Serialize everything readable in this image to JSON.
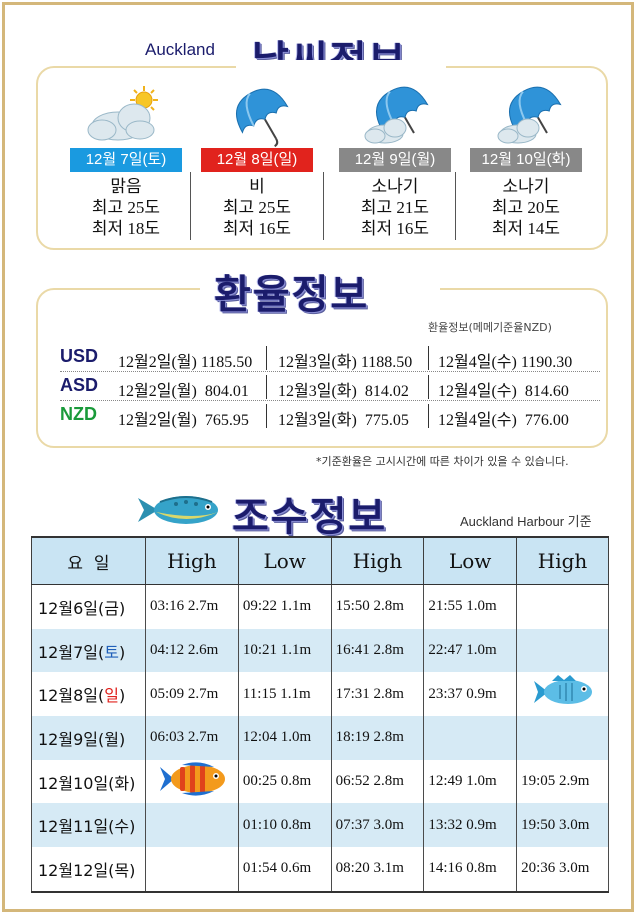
{
  "weather": {
    "location": "Auckland",
    "title": "날씨정보",
    "days": [
      {
        "date": "12월 7일(토)",
        "badge_color": "#1a9ae0",
        "icon": "sun-cloud-icon",
        "condition": "맑음",
        "high": "최고 25도",
        "low": "최저 18도"
      },
      {
        "date": "12월 8일(일)",
        "badge_color": "#e1231d",
        "icon": "umbrella-icon",
        "condition": "비",
        "high": "최고 25도",
        "low": "최저 16도"
      },
      {
        "date": "12월 9일(월)",
        "badge_color": "#888888",
        "icon": "umbrella-cloud-icon",
        "condition": "소나기",
        "high": "최고 21도",
        "low": "최저 16도"
      },
      {
        "date": "12월 10일(화)",
        "badge_color": "#888888",
        "icon": "umbrella-cloud-icon",
        "condition": "소나기",
        "high": "최고 20도",
        "low": "최저 14도"
      }
    ]
  },
  "exchange": {
    "title": "환율정보",
    "note": "환율정보(메메기준율NZD)",
    "footnote": "*기준환율은 고시시간에 따른 차이가 있을 수 있습니다.",
    "rows": [
      {
        "currency": "USD",
        "color": "#1b1c6c",
        "values": [
          "12월2일(월) 1185.50",
          "12월3일(화) 1188.50",
          "12월4일(수) 1190.30"
        ]
      },
      {
        "currency": "ASD",
        "color": "#1b1c6c",
        "values": [
          "12월2일(월)  804.01",
          "12월3일(화)  814.02",
          "12월4일(수)  814.60"
        ]
      },
      {
        "currency": "NZD",
        "color": "#1a9a3a",
        "values": [
          "12월2일(월)  765.95",
          "12월3일(화)  775.05",
          "12월4일(수)  776.00"
        ]
      }
    ]
  },
  "tide": {
    "title": "조수정보",
    "reference": "Auckland Harbour 기준",
    "headers": [
      "요  일",
      "High",
      "Low",
      "High",
      "Low",
      "High"
    ],
    "rows": [
      {
        "day_prefix": "12월6일(",
        "day_mid": "금",
        "day_suffix": ")",
        "day_style": "",
        "cells": [
          "03:16 2.7m",
          "09:22 1.1m",
          "15:50 2.8m",
          "21:55 1.0m",
          ""
        ]
      },
      {
        "day_prefix": "12월7일(",
        "day_mid": "토",
        "day_suffix": ")",
        "day_style": "blue",
        "cells": [
          "04:12 2.6m",
          "10:21 1.1m",
          "16:41 2.8m",
          "22:47 1.0m",
          ""
        ]
      },
      {
        "day_prefix": "12월8일(",
        "day_mid": "일",
        "day_suffix": ")",
        "day_style": "red",
        "cells": [
          "05:09 2.7m",
          "11:15 1.1m",
          "17:31 2.8m",
          "23:37 0.9m",
          ""
        ]
      },
      {
        "day_prefix": "12월9일(",
        "day_mid": "월",
        "day_suffix": ")",
        "day_style": "",
        "cells": [
          "06:03 2.7m",
          "12:04 1.0m",
          "18:19 2.8m",
          "",
          ""
        ]
      },
      {
        "day_prefix": "12월10일(",
        "day_mid": "화",
        "day_suffix": ")",
        "day_style": "",
        "cells": [
          "",
          "00:25 0.8m",
          "06:52 2.8m",
          "12:49 1.0m",
          "19:05 2.9m"
        ]
      },
      {
        "day_prefix": "12월11일(",
        "day_mid": "수",
        "day_suffix": ")",
        "day_style": "",
        "cells": [
          "",
          "01:10 0.8m",
          "07:37 3.0m",
          "13:32 0.9m",
          "19:50 3.0m"
        ]
      },
      {
        "day_prefix": "12월12일(",
        "day_mid": "목",
        "day_suffix": ")",
        "day_style": "",
        "cells": [
          "",
          "01:54 0.6m",
          "08:20 3.1m",
          "14:16 0.8m",
          "20:36 3.0m"
        ]
      }
    ]
  }
}
